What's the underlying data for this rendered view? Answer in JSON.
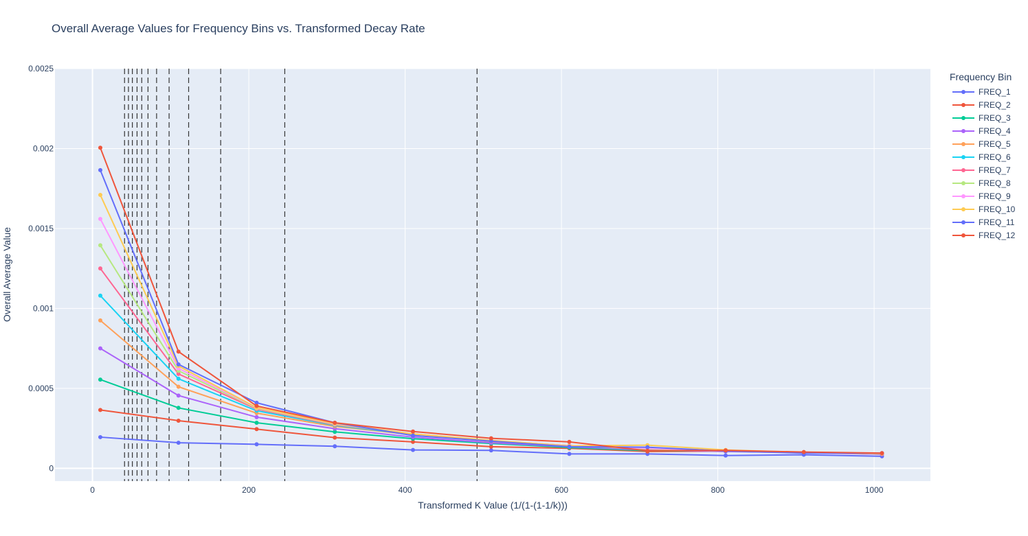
{
  "chart_data": {
    "type": "line",
    "title": "Overall Average Values for Frequency Bins vs. Transformed Decay Rate",
    "xlabel": "Transformed K Value (1/(1-(1-1/k)))",
    "ylabel": "Overall Average Value",
    "xlim": [
      -48,
      1072
    ],
    "ylim": [
      -8e-05,
      0.0025
    ],
    "x_ticks": [
      0,
      200,
      400,
      600,
      800,
      1000
    ],
    "x_tick_labels": [
      "0",
      "200",
      "400",
      "600",
      "800",
      "1000"
    ],
    "y_ticks": [
      0,
      0.0005,
      0.001,
      0.0015,
      0.002,
      0.0025
    ],
    "y_tick_labels": [
      "0",
      "0.0005",
      "0.001",
      "0.0015",
      "0.002",
      "0.0025"
    ],
    "grid": true,
    "legend_title": "Frequency Bin",
    "legend_position": "right",
    "vlines_dashed": [
      41,
      46,
      51,
      57,
      63,
      71,
      82,
      98,
      123,
      164,
      246,
      492
    ],
    "x": [
      10,
      110,
      210,
      310,
      410,
      510,
      610,
      710,
      810,
      910,
      1010
    ],
    "series": [
      {
        "name": "FREQ_1",
        "color": "#636efa",
        "values": [
          0.000195,
          0.00016,
          0.00015,
          0.000138,
          0.000115,
          0.000112,
          9e-05,
          9e-05,
          8e-05,
          8.5e-05,
          7.5e-05
        ]
      },
      {
        "name": "FREQ_2",
        "color": "#EF553B",
        "values": [
          0.000365,
          0.000298,
          0.000245,
          0.000192,
          0.000165,
          0.000135,
          0.000125,
          0.000105,
          0.000108,
          0.0001,
          8.8e-05
        ]
      },
      {
        "name": "FREQ_3",
        "color": "#00cc96",
        "values": [
          0.000555,
          0.000378,
          0.000285,
          0.000228,
          0.000185,
          0.000155,
          0.00013,
          0.00011,
          0.000108,
          0.0001,
          9e-05
        ]
      },
      {
        "name": "FREQ_4",
        "color": "#ab63fa",
        "values": [
          0.00075,
          0.000455,
          0.00032,
          0.000248,
          0.000195,
          0.00016,
          0.000135,
          0.000115,
          0.000105,
          9.8e-05,
          8.8e-05
        ]
      },
      {
        "name": "FREQ_5",
        "color": "#FFA15A",
        "values": [
          0.000925,
          0.00051,
          0.000345,
          0.000262,
          0.00021,
          0.000168,
          0.00014,
          0.00012,
          0.000108,
          0.0001,
          9e-05
        ]
      },
      {
        "name": "FREQ_6",
        "color": "#19d3f3",
        "values": [
          0.00108,
          0.00056,
          0.00036,
          0.000268,
          0.000212,
          0.00017,
          0.00014,
          0.00012,
          0.000108,
          0.0001,
          9e-05
        ]
      },
      {
        "name": "FREQ_7",
        "color": "#FF6692",
        "values": [
          0.00125,
          0.00059,
          0.00037,
          0.000272,
          0.000215,
          0.000172,
          0.000142,
          0.00012,
          0.000108,
          0.0001,
          9e-05
        ]
      },
      {
        "name": "FREQ_8",
        "color": "#B6E880",
        "values": [
          0.001395,
          0.00061,
          0.000375,
          0.000275,
          0.000215,
          0.000172,
          0.000142,
          0.000122,
          0.00011,
          0.0001,
          9.2e-05
        ]
      },
      {
        "name": "FREQ_9",
        "color": "#FF97FF",
        "values": [
          0.00156,
          0.000625,
          0.000378,
          0.000278,
          0.000215,
          0.000172,
          0.000142,
          0.000125,
          0.00011,
          0.0001,
          9.2e-05
        ]
      },
      {
        "name": "FREQ_10",
        "color": "#FECB52",
        "values": [
          0.00171,
          0.00064,
          0.00038,
          0.00028,
          0.000215,
          0.000175,
          0.00014,
          0.000145,
          0.000115,
          0.0001,
          9.2e-05
        ]
      },
      {
        "name": "FREQ_11",
        "color": "#636efa",
        "values": [
          0.001865,
          0.00065,
          0.00041,
          0.000285,
          0.000205,
          0.00017,
          0.000135,
          0.000132,
          0.000108,
          9.5e-05,
          9.5e-05
        ]
      },
      {
        "name": "FREQ_12",
        "color": "#EF553B",
        "values": [
          0.002005,
          0.00073,
          0.00039,
          0.000285,
          0.00023,
          0.000188,
          0.000165,
          0.00011,
          0.000112,
          0.000102,
          9.5e-05
        ]
      }
    ]
  }
}
